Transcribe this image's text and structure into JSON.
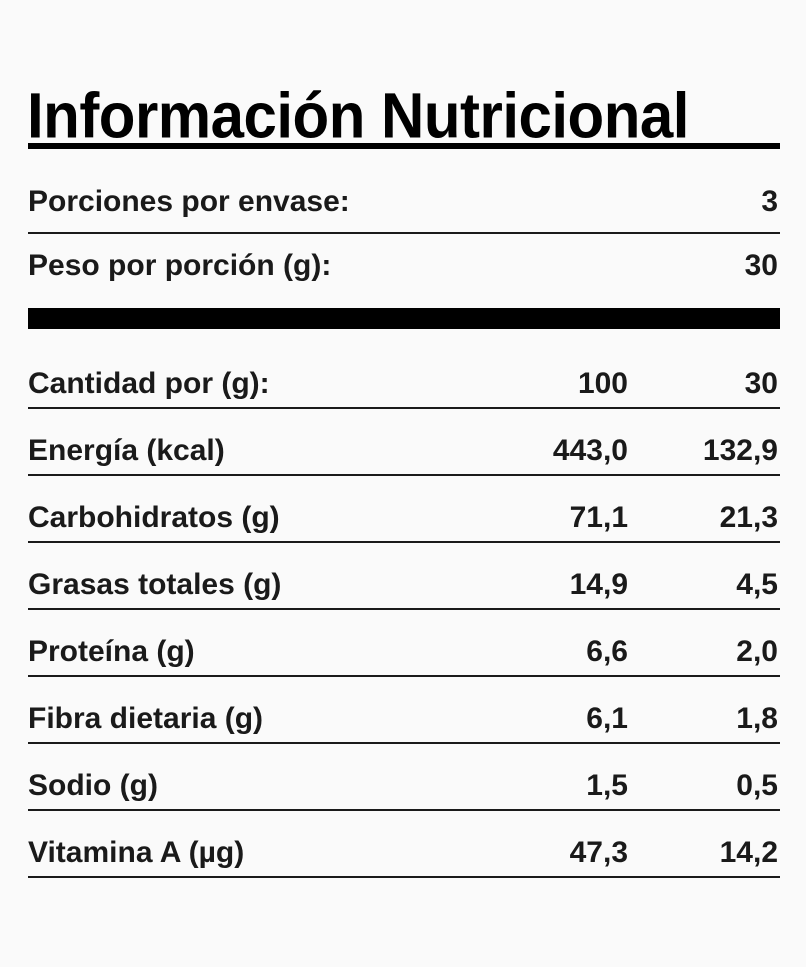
{
  "title": "Información Nutricional",
  "serving": {
    "portions_label": "Porciones por envase:",
    "portions_value": "3",
    "weight_label": "Peso por porción (g):",
    "weight_value": "30"
  },
  "table": {
    "header": {
      "label": "Cantidad por (g):",
      "col_100": "100",
      "col_portion": "30"
    },
    "rows": [
      {
        "label": "Energía (kcal)",
        "v100": "443,0",
        "vpor": "132,9"
      },
      {
        "label": "Carbohidratos (g)",
        "v100": "71,1",
        "vpor": "21,3"
      },
      {
        "label": "Grasas totales (g)",
        "v100": "14,9",
        "vpor": "4,5"
      },
      {
        "label": "Proteína (g)",
        "v100": "6,6",
        "vpor": "2,0"
      },
      {
        "label": "Fibra dietaria (g)",
        "v100": "6,1",
        "vpor": "1,8"
      },
      {
        "label": "Sodio (g)",
        "v100": "1,5",
        "vpor": "0,5"
      },
      {
        "label": "Vitamina A (µg)",
        "v100": "47,3",
        "vpor": "14,2"
      }
    ]
  }
}
